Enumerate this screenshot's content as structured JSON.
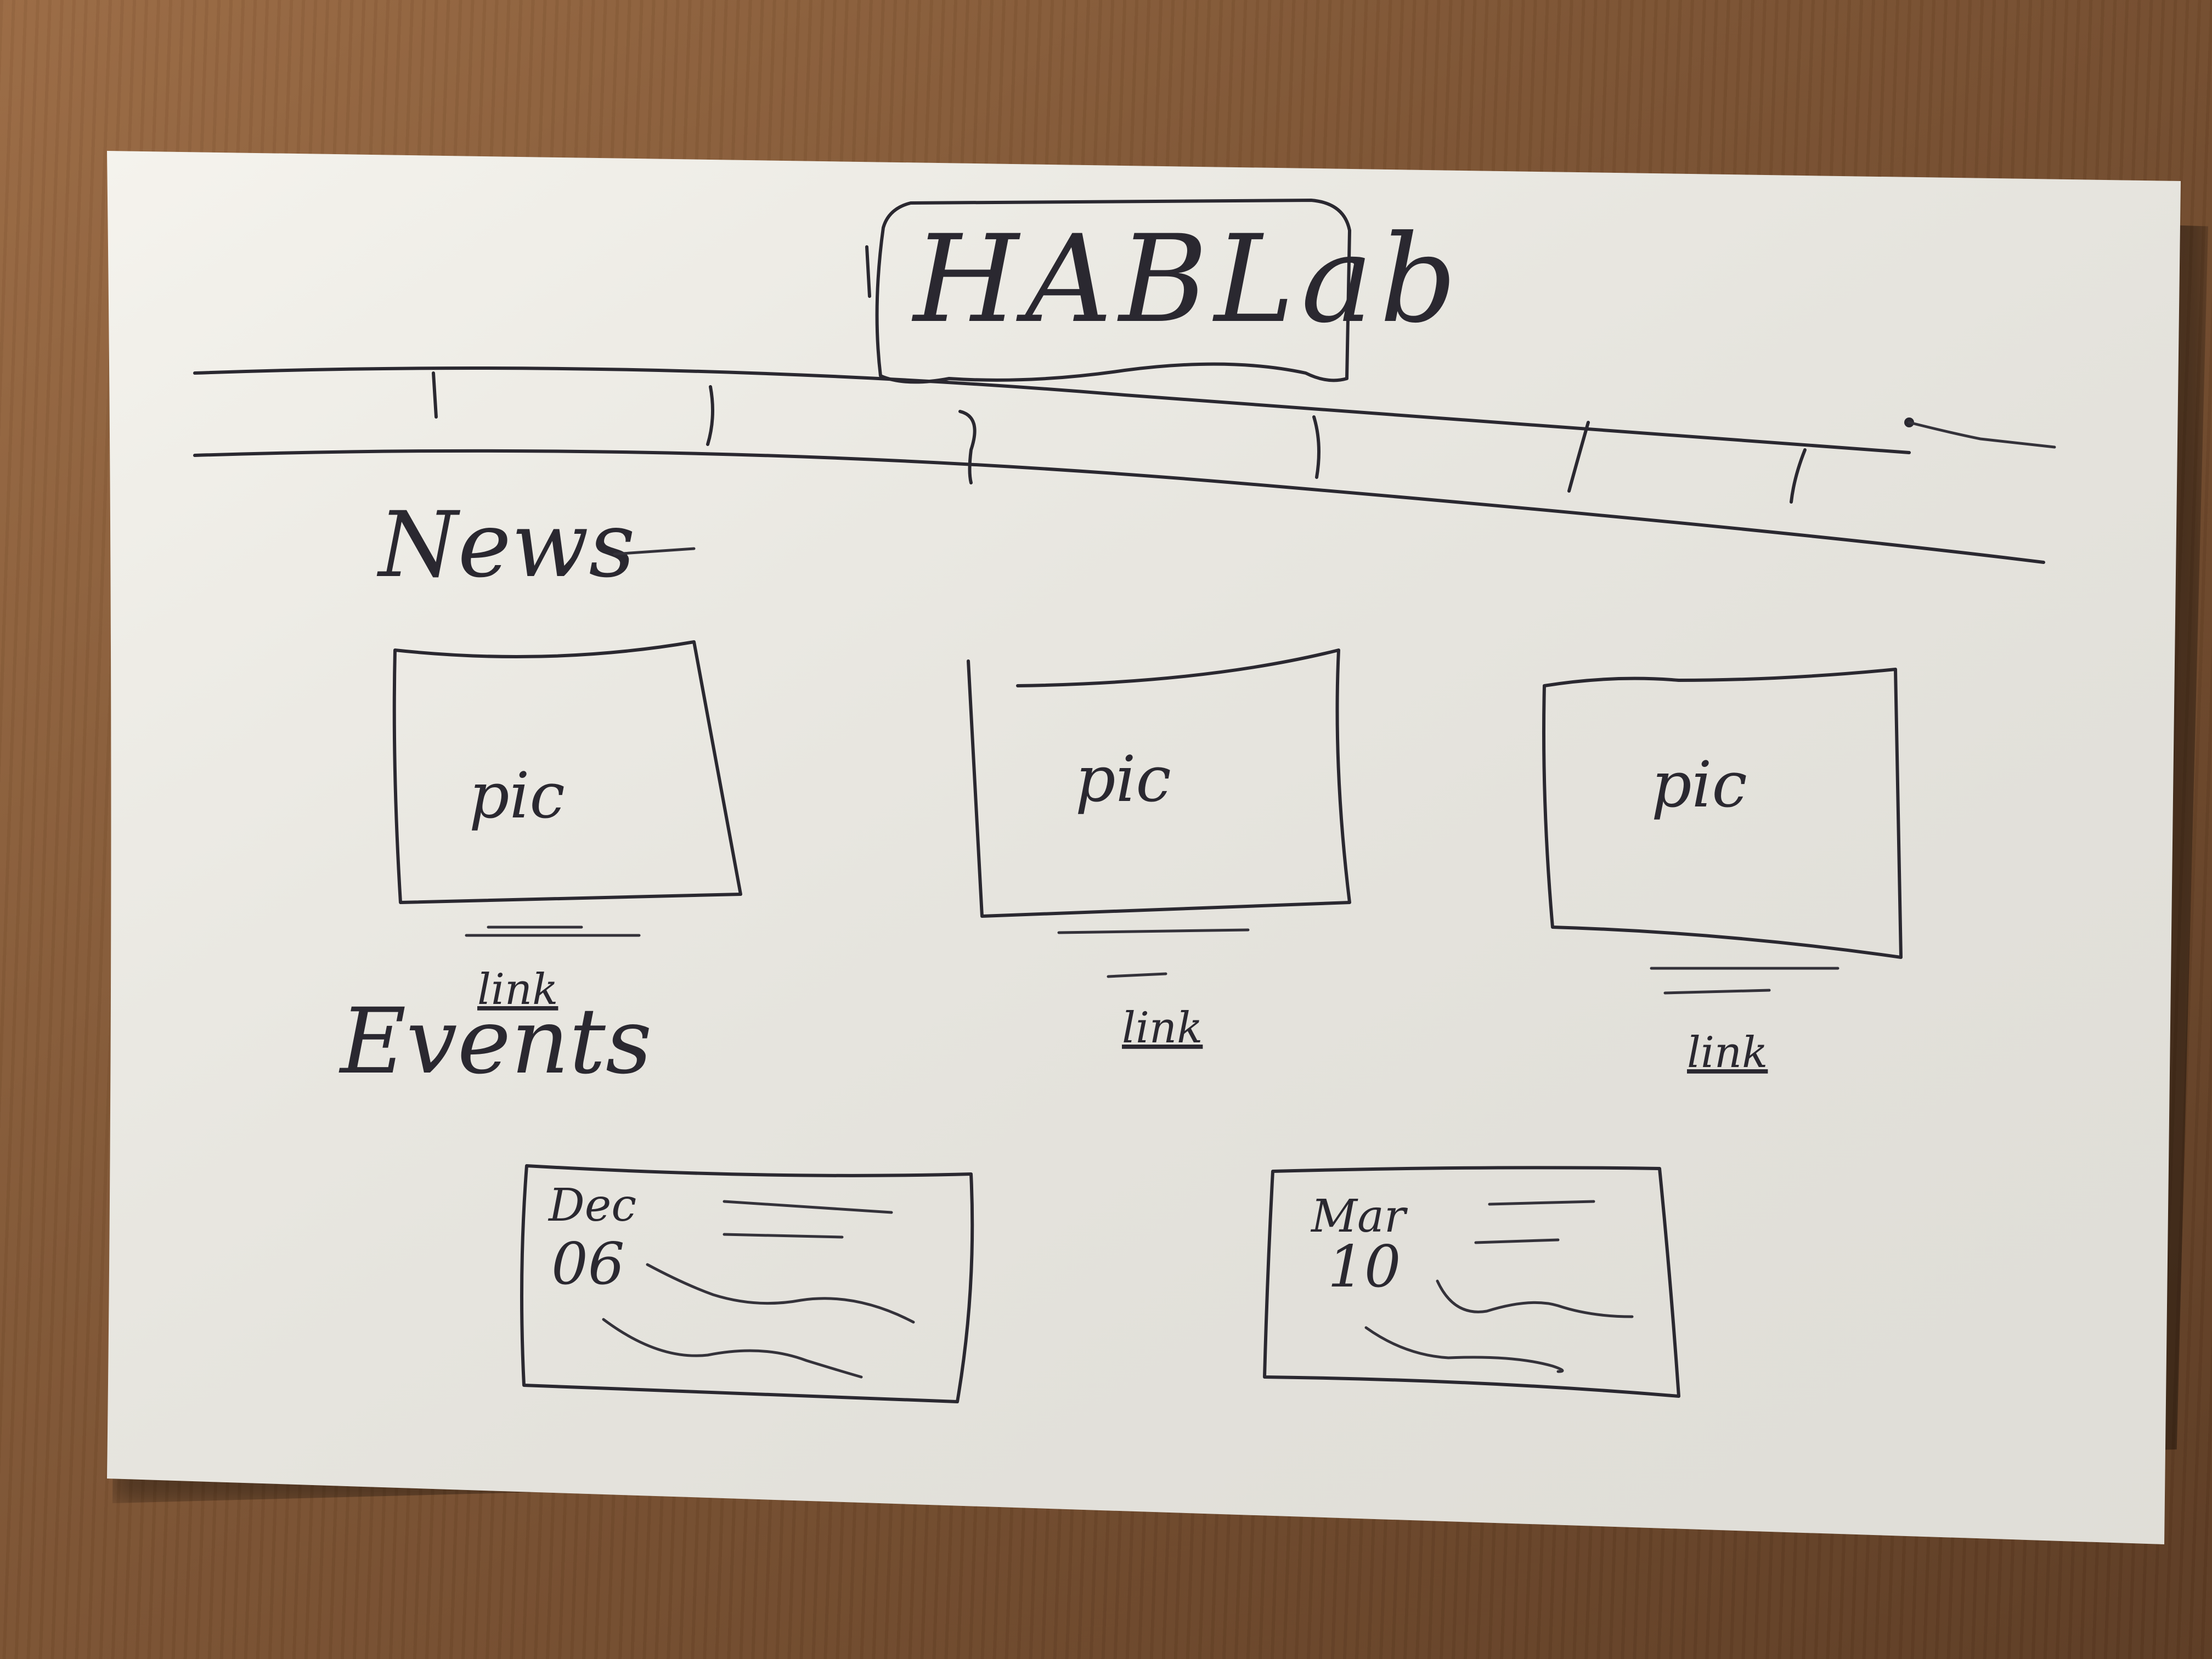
{
  "sketch": {
    "logo_text": "HABLab",
    "nav_item_count": 6
  },
  "news": {
    "heading": "News",
    "cards": [
      {
        "pic_label": "pic",
        "link_label": "link"
      },
      {
        "pic_label": "pic",
        "link_label": "link"
      },
      {
        "pic_label": "pic",
        "link_label": "link"
      }
    ]
  },
  "events": {
    "heading": "Events",
    "cards": [
      {
        "month": "Dec",
        "day": "06"
      },
      {
        "month": "Mar",
        "day": "10"
      }
    ]
  },
  "colors": {
    "paper": "#f3f1ea",
    "ink": "#2a2830",
    "table": "#7d5433"
  }
}
